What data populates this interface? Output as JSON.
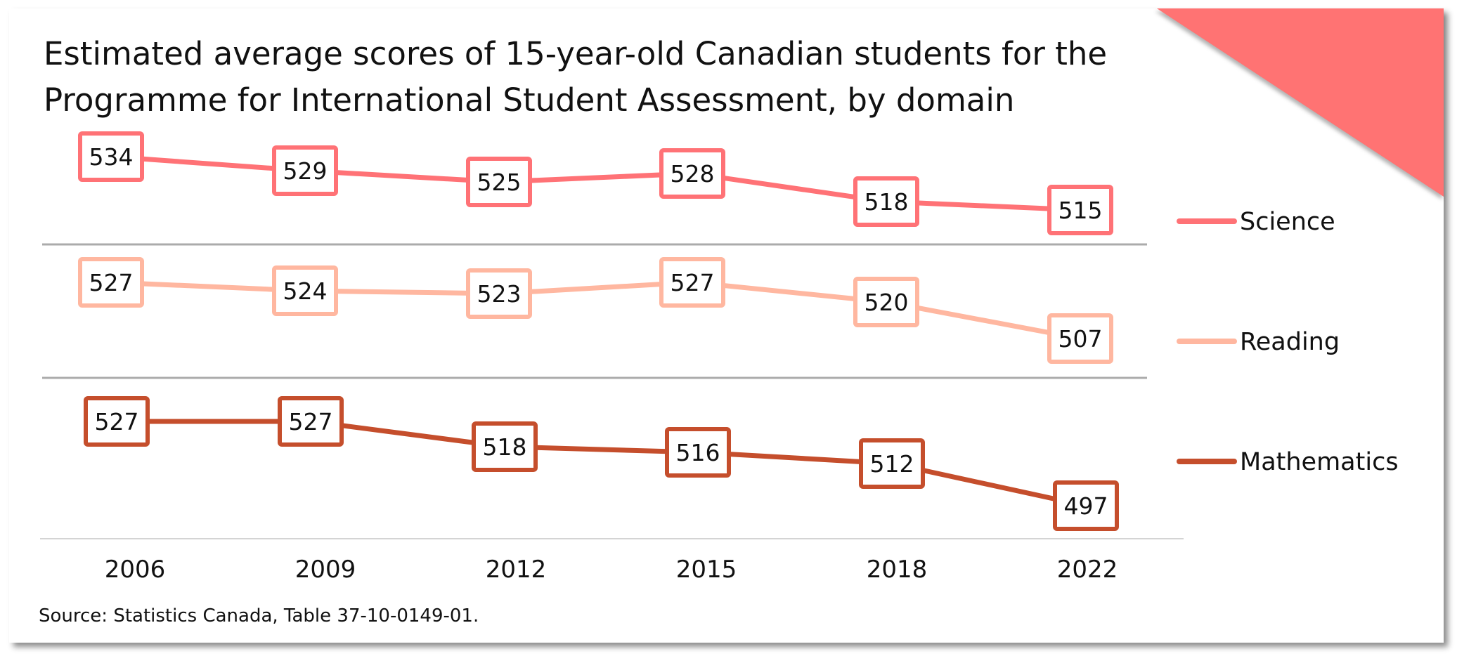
{
  "chart_data": {
    "type": "line",
    "title": "Estimated average scores of 15-year-old Canadian students for the Programme for International Student Assessment, by domain",
    "categories": [
      "2006",
      "2009",
      "2012",
      "2015",
      "2018",
      "2022"
    ],
    "series": [
      {
        "name": "Science",
        "values": [
          534,
          529,
          525,
          528,
          518,
          515
        ],
        "color": "#FF7276"
      },
      {
        "name": "Reading",
        "values": [
          527,
          524,
          523,
          527,
          520,
          507
        ],
        "color": "#FFB7A0"
      },
      {
        "name": "Mathematics",
        "values": [
          527,
          527,
          518,
          516,
          512,
          497
        ],
        "color": "#C54E2C"
      }
    ],
    "layout_style": "small multiples, one panel per series stacked vertically",
    "data_labels": true,
    "legend_placement": "right",
    "grid": false,
    "source": "Source: Statistics Canada, Table 37-10-0149-01.",
    "accent_color": "#FF7373"
  }
}
